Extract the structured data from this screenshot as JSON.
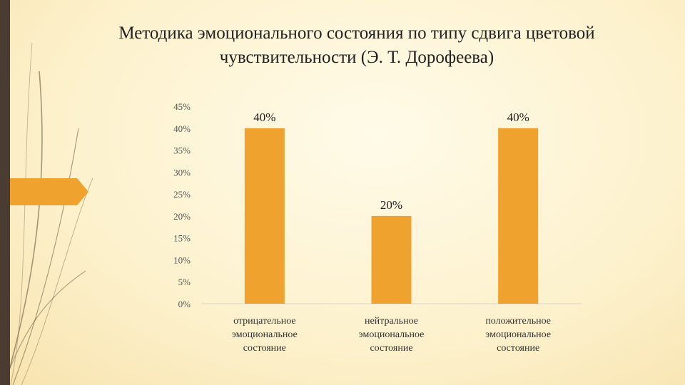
{
  "slide": {
    "title": "Методика эмоционального состояния по типу сдвига цветовой\nчувствительности (Э. Т. Дорофеева)"
  },
  "colors": {
    "bar": "#F0A22E",
    "accent": "#F0A22E",
    "sidebar": "#4A3C30",
    "background": "#FDF3D2",
    "grid": "#D9D4C8"
  },
  "chart_data": {
    "type": "bar",
    "categories": [
      [
        "отрицательное",
        "эмоциональное",
        "состояние"
      ],
      [
        "нейтральное",
        "эмоциональное",
        "состояние"
      ],
      [
        "положительное",
        "эмоциональное",
        "состояние"
      ]
    ],
    "values": [
      40,
      20,
      40
    ],
    "data_labels": [
      "40%",
      "20%",
      "40%"
    ],
    "y_ticks": [
      "0%",
      "5%",
      "10%",
      "15%",
      "20%",
      "25%",
      "30%",
      "35%",
      "40%",
      "45%"
    ],
    "ylim": [
      0,
      45
    ],
    "grid": false,
    "legend": "none"
  }
}
